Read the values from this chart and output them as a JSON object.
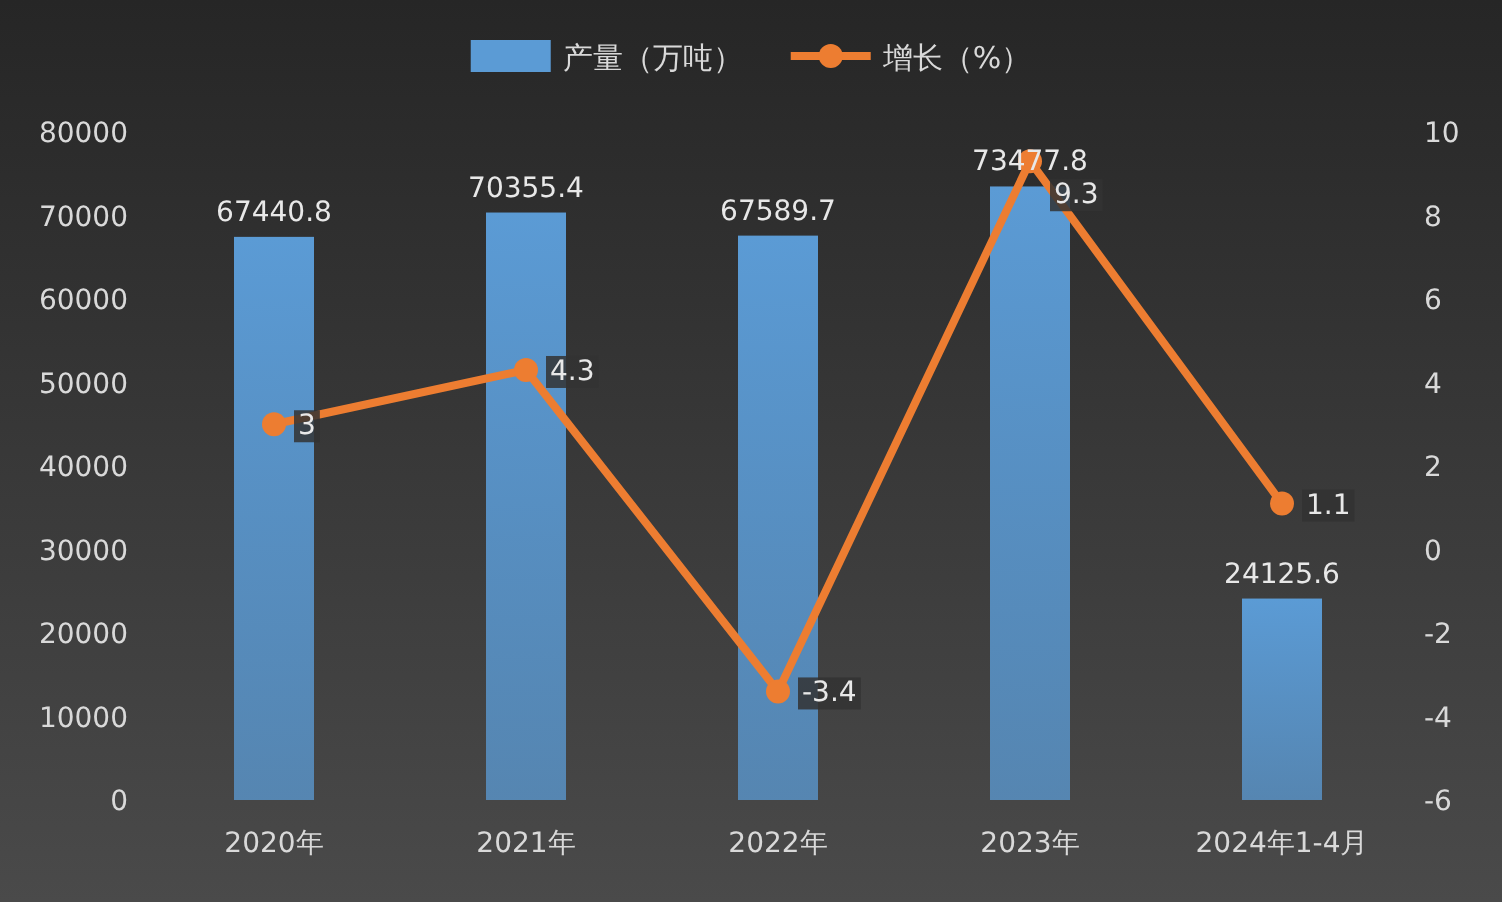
{
  "chart_data": {
    "type": "bar",
    "categories": [
      "2020年",
      "2021年",
      "2022年",
      "2023年",
      "2024年1-4月"
    ],
    "series": [
      {
        "name": "产量（万吨）",
        "color": "#5b9bd5",
        "values": [
          67440.8,
          70355.4,
          67589.7,
          73477.8,
          24125.6
        ]
      },
      {
        "name": "增长（%）",
        "type": "line",
        "axis": "y2",
        "color": "#ed7d31",
        "marker": "circle",
        "values": [
          3,
          4.3,
          -3.4,
          9.3,
          1.1
        ]
      }
    ],
    "ylim": [
      0,
      80000
    ],
    "yticks": [
      0,
      10000,
      20000,
      30000,
      40000,
      50000,
      60000,
      70000,
      80000
    ],
    "y2lim": [
      -6,
      10
    ],
    "y2ticks": [
      -6,
      -4,
      -2,
      0,
      2,
      4,
      6,
      8,
      10
    ],
    "legend": "top",
    "data_labels": true
  }
}
